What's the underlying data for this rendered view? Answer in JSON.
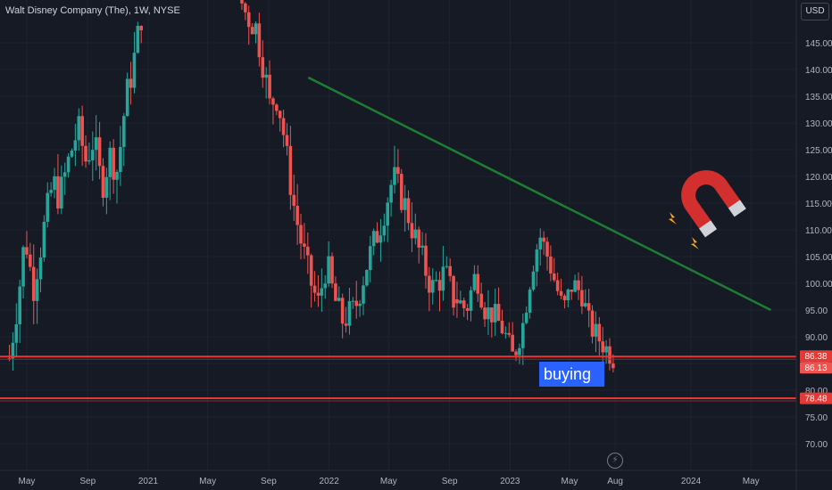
{
  "header": {
    "title": "Walt Disney Company (The), 1W, NYSE",
    "currency": "USD"
  },
  "annotations": {
    "buying_label": "buying",
    "magnet_icon": "magnet-icon",
    "bolt_icon": "lightning-icon"
  },
  "colors": {
    "background": "#161a25",
    "up": "#26a69a",
    "down": "#ef5350",
    "trendline": "#1e7d32",
    "support": "#e53935",
    "buying_box": "#2962ff"
  },
  "chart_data": {
    "type": "candlestick",
    "y_axis": {
      "range": [
        66,
        154
      ],
      "ticks": [
        "145.00",
        "140.00",
        "135.00",
        "130.00",
        "125.00",
        "120.00",
        "115.00",
        "110.00",
        "105.00",
        "100.00",
        "95.00",
        "90.00",
        "85.00",
        "80.00",
        "75.00",
        "70.00"
      ],
      "tick_values": [
        145,
        140,
        135,
        130,
        125,
        120,
        115,
        110,
        105,
        100,
        95,
        90,
        85,
        80,
        75,
        70
      ]
    },
    "x_axis": {
      "ticks": [
        "May",
        "Sep",
        "2021",
        "May",
        "Sep",
        "2022",
        "May",
        "Sep",
        "2023",
        "May",
        "Aug",
        "2024",
        "May"
      ],
      "tick_dates": [
        "2020-05-01",
        "2020-09-01",
        "2021-01-01",
        "2021-05-01",
        "2021-09-01",
        "2022-01-01",
        "2022-05-01",
        "2022-09-01",
        "2023-01-01",
        "2023-05-01",
        "2023-08-01",
        "2024-01-01",
        "2024-05-01"
      ]
    },
    "price_labels": [
      {
        "value": 86.38,
        "text": "86.38",
        "color": "#e53935"
      },
      {
        "value": 86.13,
        "text": "86.13",
        "color": "#ef5350"
      },
      {
        "value": 78.48,
        "text": "78.48",
        "color": "#e53935"
      }
    ],
    "horizontal_lines": [
      {
        "name": "support-upper",
        "value": 86.3
      },
      {
        "name": "support-lower",
        "value": 78.5
      }
    ],
    "trendline": {
      "start": {
        "date": "2021-11-20",
        "value": 138.5
      },
      "end": {
        "date": "2024-06-10",
        "value": 95.0
      }
    },
    "segments": [
      {
        "start": "2020-03-27",
        "end": "2020-12-18",
        "open": 86,
        "waypoints": [
          [
            0,
            86
          ],
          [
            0.07,
            98
          ],
          [
            0.12,
            109
          ],
          [
            0.18,
            99
          ],
          [
            0.26,
            110
          ],
          [
            0.33,
            119
          ],
          [
            0.38,
            116
          ],
          [
            0.46,
            124
          ],
          [
            0.52,
            129
          ],
          [
            0.58,
            123
          ],
          [
            0.64,
            127
          ],
          [
            0.7,
            118
          ],
          [
            0.76,
            124
          ],
          [
            0.82,
            121
          ],
          [
            0.88,
            134
          ],
          [
            0.94,
            141
          ],
          [
            1,
            150
          ]
        ],
        "noise": 3.2
      },
      {
        "start": "2021-07-02",
        "end": "2022-09-09",
        "open": 154,
        "waypoints": [
          [
            0,
            154
          ],
          [
            0.04,
            150
          ],
          [
            0.08,
            148
          ],
          [
            0.12,
            140
          ],
          [
            0.15,
            132
          ],
          [
            0.17,
            136
          ],
          [
            0.2,
            131
          ],
          [
            0.23,
            122
          ],
          [
            0.26,
            114
          ],
          [
            0.29,
            108
          ],
          [
            0.33,
            101
          ],
          [
            0.37,
            96
          ],
          [
            0.41,
            104
          ],
          [
            0.44,
            98
          ],
          [
            0.48,
            93
          ],
          [
            0.54,
            95
          ],
          [
            0.6,
            104
          ],
          [
            0.66,
            111
          ],
          [
            0.72,
            120
          ],
          [
            0.78,
            114
          ],
          [
            0.84,
            106
          ],
          [
            0.9,
            99
          ],
          [
            0.96,
            102
          ],
          [
            1,
            97
          ]
        ],
        "noise": 3.0
      },
      {
        "start": "2022-09-16",
        "end": "2023-07-28",
        "open": 97,
        "waypoints": [
          [
            0,
            97
          ],
          [
            0.06,
            95
          ],
          [
            0.12,
            102
          ],
          [
            0.18,
            95
          ],
          [
            0.24,
            94
          ],
          [
            0.3,
            91
          ],
          [
            0.36,
            86
          ],
          [
            0.42,
            92
          ],
          [
            0.48,
            103
          ],
          [
            0.53,
            109
          ],
          [
            0.58,
            105
          ],
          [
            0.63,
            100
          ],
          [
            0.68,
            95
          ],
          [
            0.74,
            100
          ],
          [
            0.8,
            98
          ],
          [
            0.85,
            92
          ],
          [
            0.9,
            90
          ],
          [
            0.95,
            88
          ],
          [
            1,
            86.1
          ]
        ],
        "noise": 2.4
      }
    ],
    "start_date": "2020-03-01",
    "end_date": "2024-07-15"
  }
}
